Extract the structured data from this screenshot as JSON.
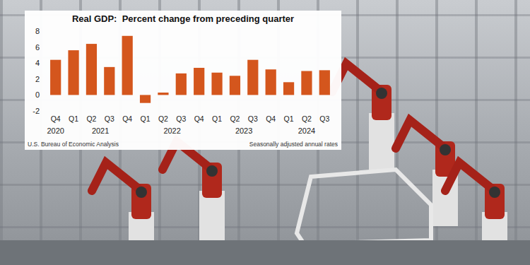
{
  "chart_data": {
    "type": "bar",
    "title": "Real GDP:  Percent change from preceding quarter",
    "categories": [
      "Q4",
      "Q1",
      "Q2",
      "Q3",
      "Q4",
      "Q1",
      "Q2",
      "Q3",
      "Q4",
      "Q1",
      "Q2",
      "Q3",
      "Q4",
      "Q1",
      "Q2",
      "Q3"
    ],
    "groups": [
      {
        "label": "2020",
        "count": 1
      },
      {
        "label": "2021",
        "count": 4
      },
      {
        "label": "2022",
        "count": 4
      },
      {
        "label": "2023",
        "count": 4
      },
      {
        "label": "2024",
        "count": 3
      }
    ],
    "values": [
      4.4,
      5.6,
      6.4,
      3.5,
      7.4,
      -1.0,
      0.3,
      2.7,
      3.4,
      2.8,
      2.4,
      4.4,
      3.2,
      1.6,
      3.0,
      3.1
    ],
    "color": "#d4561d",
    "ylim": [
      -2,
      8
    ],
    "yticks": [
      -2,
      0,
      2,
      4,
      6,
      8
    ],
    "grid": false,
    "source": "U.S. Bureau of Economic Analysis",
    "note": "Seasonally adjusted annual rates"
  }
}
